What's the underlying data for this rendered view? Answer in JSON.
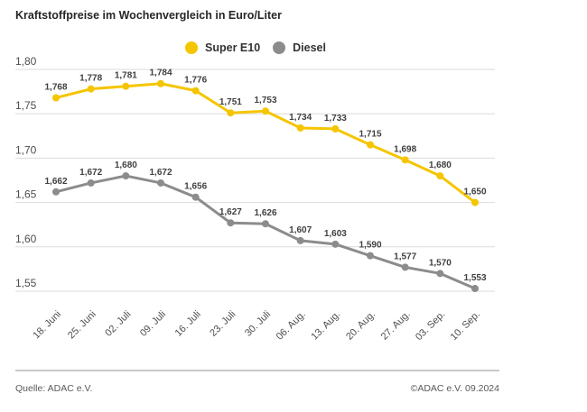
{
  "title": "Kraftstoffpreise im Wochenvergleich in Euro/Liter",
  "legend": [
    {
      "label": "Super E10",
      "color": "#F5C500"
    },
    {
      "label": "Diesel",
      "color": "#8C8C8C"
    }
  ],
  "chart_data": {
    "type": "line",
    "title": "Kraftstoffpreise im Wochenvergleich in Euro/Liter",
    "xlabel": "",
    "ylabel": "Euro/Liter",
    "ylim": [
      1.55,
      1.8
    ],
    "grid": true,
    "legend_position": "top-center",
    "yticks": [
      "1,80",
      "1,75",
      "1,70",
      "1,65",
      "1,60",
      "1,55"
    ],
    "categories": [
      "18. Juni",
      "25. Juni",
      "02. Juli",
      "09. Juli",
      "16. Juli",
      "23. Juli",
      "30. Juli",
      "06. Aug.",
      "13. Aug.",
      "20. Aug.",
      "27. Aug.",
      "03. Sep.",
      "10. Sep."
    ],
    "series": [
      {
        "name": "Super E10",
        "color": "#F5C500",
        "values": [
          1.768,
          1.778,
          1.781,
          1.784,
          1.776,
          1.751,
          1.753,
          1.734,
          1.733,
          1.715,
          1.698,
          1.68,
          1.65
        ],
        "labels": [
          "1,768",
          "1,778",
          "1,781",
          "1,784",
          "1,776",
          "1,751",
          "1,753",
          "1,734",
          "1,733",
          "1,715",
          "1,698",
          "1,680",
          "1,650"
        ]
      },
      {
        "name": "Diesel",
        "color": "#8C8C8C",
        "values": [
          1.662,
          1.672,
          1.68,
          1.672,
          1.656,
          1.627,
          1.626,
          1.607,
          1.603,
          1.59,
          1.577,
          1.57,
          1.553
        ],
        "labels": [
          "1,662",
          "1,672",
          "1,680",
          "1,672",
          "1,656",
          "1,627",
          "1,626",
          "1,607",
          "1,603",
          "1,590",
          "1,577",
          "1,570",
          "1,553"
        ]
      }
    ]
  },
  "footer": {
    "source": "Quelle: ADAC e.V.",
    "copyright": "©ADAC e.V. 09.2024"
  },
  "colors": {
    "grid": "#DBDBDB",
    "axis_text": "#4D4D4D",
    "data_label": "#404040",
    "separator": "#C9C9C9"
  }
}
